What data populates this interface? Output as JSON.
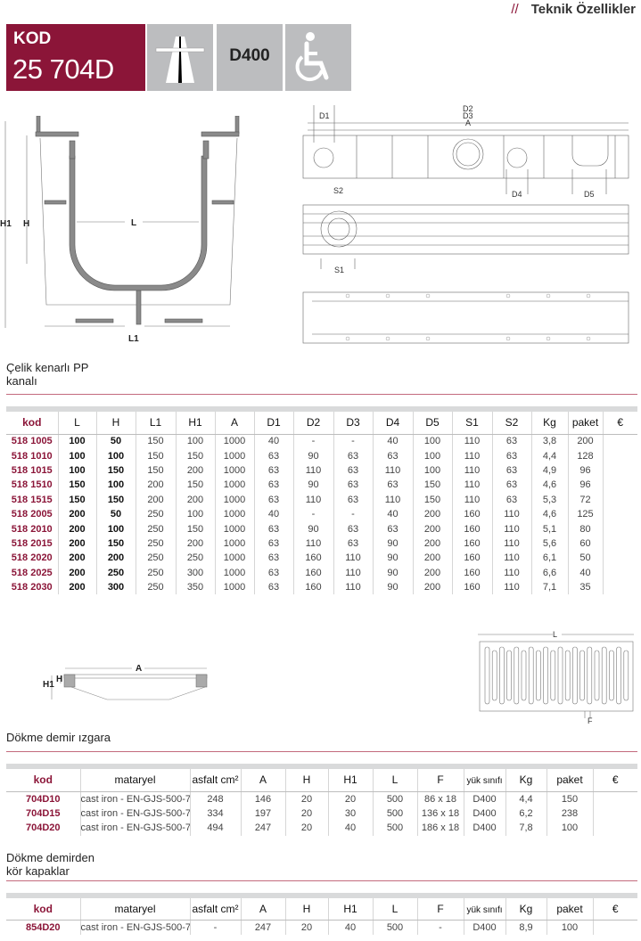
{
  "header": {
    "separator": "//",
    "title": "Teknik Özellikler"
  },
  "product": {
    "kod_label": "KOD",
    "kod_value": "25 704D"
  },
  "badges": [
    {
      "icon": "highway-icon"
    },
    {
      "text": "D400"
    },
    {
      "icon": "wheelchair-icon"
    }
  ],
  "colors": {
    "accent": "#8b1538",
    "badge_gray": "#bcbdbf",
    "band_gray": "#d9dadb"
  },
  "drawings": {
    "channel_section": {
      "labels": {
        "H1": "H1",
        "H": "H",
        "L": "L",
        "L1": "L1"
      }
    },
    "channel_views": {
      "labels": {
        "D1": "D1",
        "D2": "D2",
        "D3": "D3",
        "A": "A",
        "D4": "D4",
        "D5": "D5",
        "S2": "S2",
        "S1": "S1"
      }
    },
    "grate_section": {
      "labels": {
        "A": "A",
        "H": "H",
        "H1": "H1"
      }
    },
    "grate_top": {
      "labels": {
        "L": "L",
        "F": "F"
      }
    }
  },
  "channel": {
    "title_line1": "Çelik kenarlı PP",
    "title_line2": "kanalı",
    "columns": [
      "kod",
      "L",
      "H",
      "L1",
      "H1",
      "A",
      "D1",
      "D2",
      "D3",
      "D4",
      "D5",
      "S1",
      "S2",
      "Kg",
      "paket",
      "€"
    ],
    "rows": [
      [
        "518 1005",
        "100",
        "50",
        "150",
        "100",
        "1000",
        "40",
        "-",
        "-",
        "40",
        "100",
        "110",
        "63",
        "3,8",
        "200",
        ""
      ],
      [
        "518 1010",
        "100",
        "100",
        "150",
        "150",
        "1000",
        "63",
        "90",
        "63",
        "63",
        "100",
        "110",
        "63",
        "4,4",
        "128",
        ""
      ],
      [
        "518 1015",
        "100",
        "150",
        "150",
        "200",
        "1000",
        "63",
        "110",
        "63",
        "110",
        "100",
        "110",
        "63",
        "4,9",
        "96",
        ""
      ],
      [
        "518 1510",
        "150",
        "100",
        "200",
        "150",
        "1000",
        "63",
        "90",
        "63",
        "63",
        "150",
        "110",
        "63",
        "4,6",
        "96",
        ""
      ],
      [
        "518 1515",
        "150",
        "150",
        "200",
        "200",
        "1000",
        "63",
        "110",
        "63",
        "110",
        "150",
        "110",
        "63",
        "5,3",
        "72",
        ""
      ],
      [
        "518 2005",
        "200",
        "50",
        "250",
        "100",
        "1000",
        "40",
        "-",
        "-",
        "40",
        "200",
        "160",
        "110",
        "4,6",
        "125",
        ""
      ],
      [
        "518 2010",
        "200",
        "100",
        "250",
        "150",
        "1000",
        "63",
        "90",
        "63",
        "63",
        "200",
        "160",
        "110",
        "5,1",
        "80",
        ""
      ],
      [
        "518 2015",
        "200",
        "150",
        "250",
        "200",
        "1000",
        "63",
        "110",
        "63",
        "90",
        "200",
        "160",
        "110",
        "5,6",
        "60",
        ""
      ],
      [
        "518 2020",
        "200",
        "200",
        "250",
        "250",
        "1000",
        "63",
        "160",
        "110",
        "90",
        "200",
        "160",
        "110",
        "6,1",
        "50",
        ""
      ],
      [
        "518 2025",
        "200",
        "250",
        "250",
        "300",
        "1000",
        "63",
        "160",
        "110",
        "90",
        "200",
        "160",
        "110",
        "6,6",
        "40",
        ""
      ],
      [
        "518 2030",
        "200",
        "300",
        "250",
        "350",
        "1000",
        "63",
        "160",
        "110",
        "90",
        "200",
        "160",
        "110",
        "7,1",
        "35",
        ""
      ]
    ]
  },
  "grate": {
    "title": "Dökme demir ızgara",
    "columns": [
      "kod",
      "mataryel",
      "asfalt cm²",
      "A",
      "H",
      "H1",
      "L",
      "F",
      "yük sınıfı",
      "Kg",
      "paket",
      "€"
    ],
    "rows": [
      [
        "704D10",
        "cast iron - EN-GJS-500-7",
        "248",
        "146",
        "20",
        "20",
        "500",
        "86 x 18",
        "D400",
        "4,4",
        "150",
        ""
      ],
      [
        "704D15",
        "cast iron - EN-GJS-500-7",
        "334",
        "197",
        "20",
        "30",
        "500",
        "136 x 18",
        "D400",
        "6,2",
        "238",
        ""
      ],
      [
        "704D20",
        "cast iron - EN-GJS-500-7",
        "494",
        "247",
        "20",
        "40",
        "500",
        "186 x 18",
        "D400",
        "7,8",
        "100",
        ""
      ]
    ]
  },
  "cover": {
    "title_line1": "Dökme demirden",
    "title_line2": "kör kapaklar",
    "columns": [
      "kod",
      "mataryel",
      "asfalt cm²",
      "A",
      "H",
      "H1",
      "L",
      "F",
      "yük sınıfı",
      "Kg",
      "paket",
      "€"
    ],
    "rows": [
      [
        "854D20",
        "cast iron - EN-GJS-500-7",
        "-",
        "247",
        "20",
        "40",
        "500",
        "-",
        "D400",
        "8,9",
        "100",
        ""
      ]
    ]
  }
}
